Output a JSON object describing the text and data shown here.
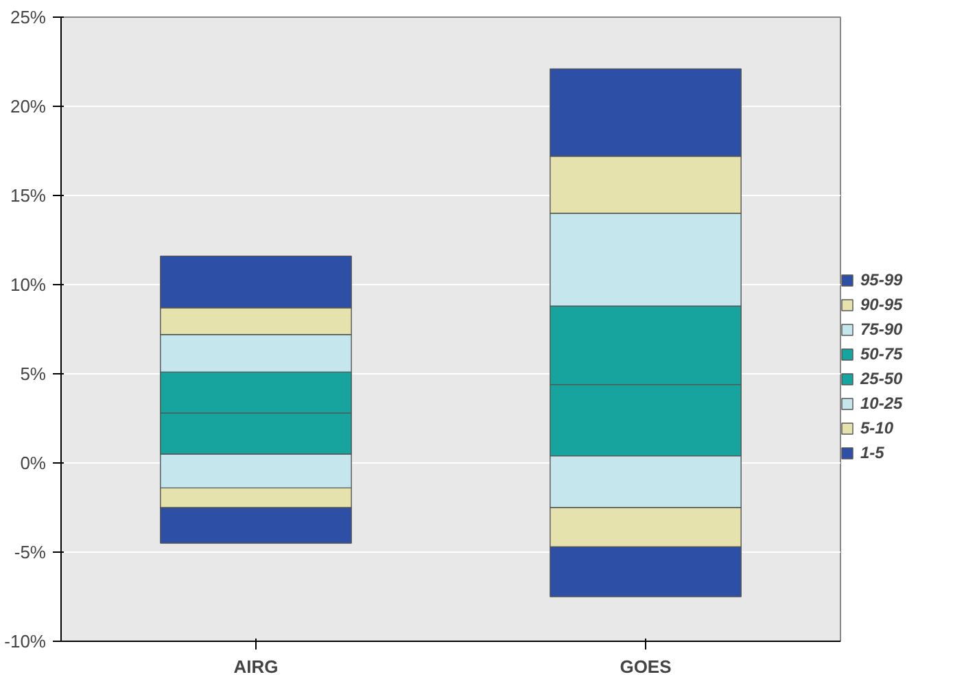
{
  "chart_data": {
    "type": "bar",
    "categories": [
      "AIRG",
      "GOES"
    ],
    "series": [
      {
        "name": "1-5",
        "color": "#2e4fa6",
        "base": [
          -4.5,
          -7.5
        ],
        "values": [
          2.0,
          2.8
        ]
      },
      {
        "name": "5-10",
        "color": "#e6e2ae",
        "base": [
          -2.5,
          -4.7
        ],
        "values": [
          1.1,
          2.2
        ]
      },
      {
        "name": "10-25",
        "color": "#c6e6ee",
        "base": [
          -1.4,
          -2.5
        ],
        "values": [
          1.9,
          2.9
        ]
      },
      {
        "name": "25-50",
        "color": "#17a39e",
        "base": [
          0.5,
          0.4
        ],
        "values": [
          2.3,
          4.0
        ]
      },
      {
        "name": "50-75",
        "color": "#17a39e",
        "base": [
          2.8,
          4.4
        ],
        "values": [
          2.3,
          4.4
        ]
      },
      {
        "name": "75-90",
        "color": "#c6e6ee",
        "base": [
          5.1,
          8.8
        ],
        "values": [
          2.1,
          5.2
        ]
      },
      {
        "name": "90-95",
        "color": "#e6e2ae",
        "base": [
          7.2,
          14.0
        ],
        "values": [
          1.5,
          3.2
        ]
      },
      {
        "name": "95-99",
        "color": "#2e4fa6",
        "base": [
          8.7,
          17.2
        ],
        "values": [
          2.9,
          4.9
        ]
      }
    ],
    "ylim": [
      -10,
      25
    ],
    "yticks": [
      {
        "value": -10,
        "label": "-10%"
      },
      {
        "value": -5,
        "label": "-5%"
      },
      {
        "value": 0,
        "label": "0%"
      },
      {
        "value": 5,
        "label": "5%"
      },
      {
        "value": 10,
        "label": "10%"
      },
      {
        "value": 15,
        "label": "15%"
      },
      {
        "value": 20,
        "label": "20%"
      },
      {
        "value": 25,
        "label": "25%"
      }
    ],
    "grid": "y",
    "legend": "right"
  }
}
